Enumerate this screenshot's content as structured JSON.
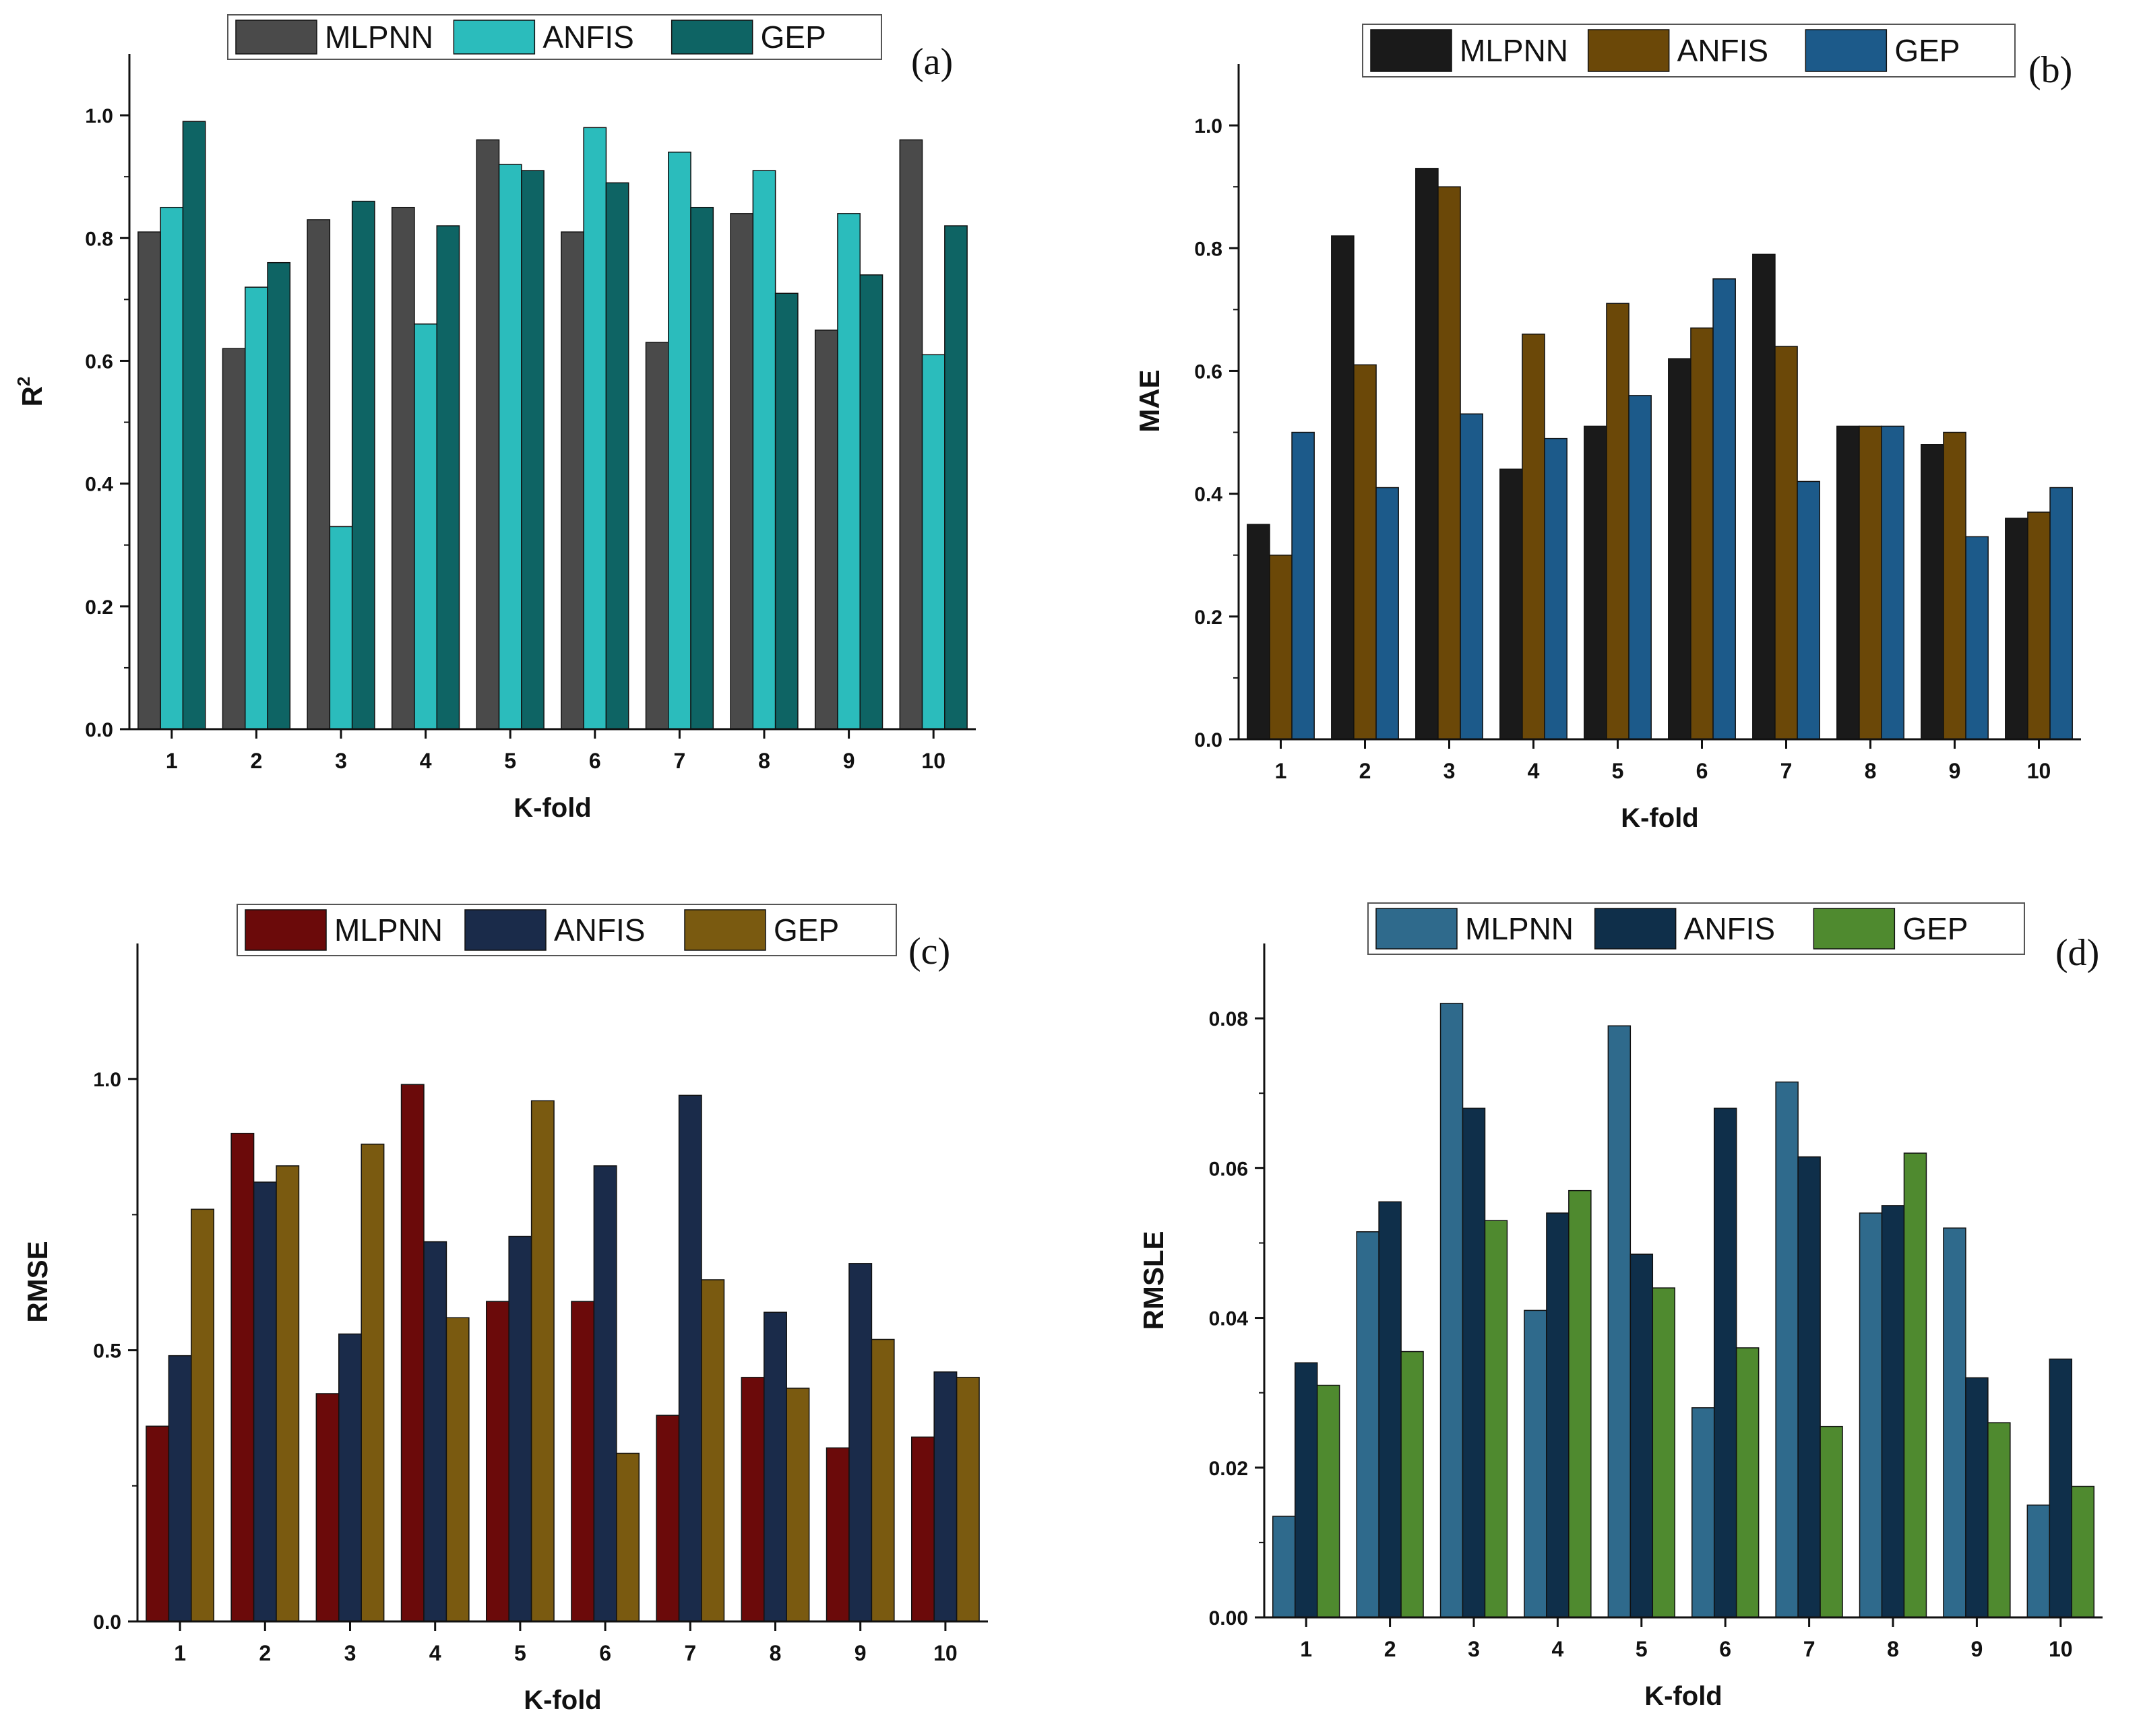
{
  "figure": {
    "panels": [
      "a",
      "b",
      "c",
      "d"
    ]
  },
  "chart_data": [
    {
      "type": "bar",
      "panel_label": "(a)",
      "xlabel": "K-fold",
      "ylabel_base": "R",
      "ylabel_sup": "2",
      "categories": [
        "1",
        "2",
        "3",
        "4",
        "5",
        "6",
        "7",
        "8",
        "9",
        "10"
      ],
      "ylim": [
        0,
        1.1
      ],
      "yticks": [
        0.0,
        0.2,
        0.4,
        0.6,
        0.8,
        1.0
      ],
      "ytick_labels": [
        "0.0",
        "0.2",
        "0.4",
        "0.6",
        "0.8",
        "1.0"
      ],
      "legend_position": "top",
      "series": [
        {
          "name": "MLPNN",
          "color": "#4a4a4a",
          "values": [
            0.81,
            0.62,
            0.83,
            0.85,
            0.96,
            0.81,
            0.63,
            0.84,
            0.65,
            0.96
          ]
        },
        {
          "name": "ANFIS",
          "color": "#2bbcbc",
          "values": [
            0.85,
            0.72,
            0.33,
            0.66,
            0.92,
            0.98,
            0.94,
            0.91,
            0.84,
            0.61
          ]
        },
        {
          "name": "GEP",
          "color": "#0e6464",
          "values": [
            0.99,
            0.76,
            0.86,
            0.82,
            0.91,
            0.89,
            0.85,
            0.71,
            0.74,
            0.82
          ]
        }
      ]
    },
    {
      "type": "bar",
      "panel_label": "(b)",
      "xlabel": "K-fold",
      "ylabel_base": "MAE",
      "ylabel_sup": "",
      "categories": [
        "1",
        "2",
        "3",
        "4",
        "5",
        "6",
        "7",
        "8",
        "9",
        "10"
      ],
      "ylim": [
        0,
        1.1
      ],
      "yticks": [
        0.0,
        0.2,
        0.4,
        0.6,
        0.8,
        1.0
      ],
      "ytick_labels": [
        "0.0",
        "0.2",
        "0.4",
        "0.6",
        "0.8",
        "1.0"
      ],
      "legend_position": "top",
      "series": [
        {
          "name": "MLPNN",
          "color": "#1a1a1a",
          "values": [
            0.35,
            0.82,
            0.93,
            0.44,
            0.51,
            0.62,
            0.79,
            0.51,
            0.48,
            0.36
          ]
        },
        {
          "name": "ANFIS",
          "color": "#6b4808",
          "values": [
            0.3,
            0.61,
            0.9,
            0.66,
            0.71,
            0.67,
            0.64,
            0.51,
            0.5,
            0.37
          ]
        },
        {
          "name": "GEP",
          "color": "#1c5a8a",
          "values": [
            0.5,
            0.41,
            0.53,
            0.49,
            0.56,
            0.75,
            0.42,
            0.51,
            0.33,
            0.41
          ]
        }
      ]
    },
    {
      "type": "bar",
      "panel_label": "(c)",
      "xlabel": "K-fold",
      "ylabel_base": "RMSE",
      "ylabel_sup": "",
      "categories": [
        "1",
        "2",
        "3",
        "4",
        "5",
        "6",
        "7",
        "8",
        "9",
        "10"
      ],
      "ylim": [
        0,
        1.25
      ],
      "yticks": [
        0.0,
        0.5,
        1.0
      ],
      "ytick_labels": [
        "0.0",
        "0.5",
        "1.0"
      ],
      "legend_position": "top",
      "series": [
        {
          "name": "MLPNN",
          "color": "#6b0a0a",
          "values": [
            0.36,
            0.9,
            0.42,
            0.99,
            0.59,
            0.59,
            0.38,
            0.45,
            0.32,
            0.34
          ]
        },
        {
          "name": "ANFIS",
          "color": "#1a2b4a",
          "values": [
            0.49,
            0.81,
            0.53,
            0.7,
            0.71,
            0.84,
            0.97,
            0.57,
            0.66,
            0.46
          ]
        },
        {
          "name": "GEP",
          "color": "#7a5a10",
          "values": [
            0.76,
            0.84,
            0.88,
            0.56,
            0.96,
            0.31,
            0.63,
            0.43,
            0.52,
            0.45
          ]
        }
      ]
    },
    {
      "type": "bar",
      "panel_label": "(d)",
      "xlabel": "K-fold",
      "ylabel_base": "RMSLE",
      "ylabel_sup": "",
      "categories": [
        "1",
        "2",
        "3",
        "4",
        "5",
        "6",
        "7",
        "8",
        "9",
        "10"
      ],
      "ylim": [
        0,
        0.09
      ],
      "yticks": [
        0.0,
        0.02,
        0.04,
        0.06,
        0.08
      ],
      "ytick_labels": [
        "0.00",
        "0.02",
        "0.04",
        "0.06",
        "0.08"
      ],
      "legend_position": "top",
      "series": [
        {
          "name": "MLPNN",
          "color": "#2f6a8c",
          "values": [
            0.0135,
            0.0515,
            0.082,
            0.041,
            0.079,
            0.028,
            0.0715,
            0.054,
            0.052,
            0.015
          ]
        },
        {
          "name": "ANFIS",
          "color": "#0f2f4a",
          "values": [
            0.034,
            0.0555,
            0.068,
            0.054,
            0.0485,
            0.068,
            0.0615,
            0.055,
            0.032,
            0.0345
          ]
        },
        {
          "name": "GEP",
          "color": "#4f8a2f",
          "values": [
            0.031,
            0.0355,
            0.053,
            0.057,
            0.044,
            0.036,
            0.0255,
            0.062,
            0.026,
            0.0175
          ]
        }
      ]
    }
  ]
}
